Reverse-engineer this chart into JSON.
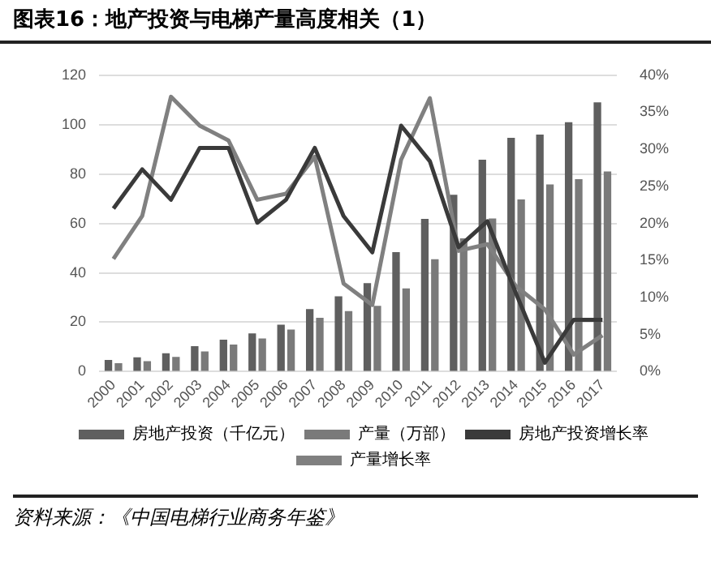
{
  "chart_data": {
    "type": "bar",
    "title": "图表16：地产投资与电梯产量高度相关（1）",
    "categories": [
      "2000",
      "2001",
      "2002",
      "2003",
      "2004",
      "2005",
      "2006",
      "2007",
      "2008",
      "2009",
      "2010",
      "2011",
      "2012",
      "2013",
      "2014",
      "2015",
      "2016",
      "2017"
    ],
    "series": [
      {
        "name": "房地产投资（千亿元）",
        "color": "#5f5f5f",
        "values": [
          4.7,
          5.8,
          7.4,
          10.3,
          12.9,
          15.5,
          19,
          25.3,
          30.5,
          35.8,
          48.4,
          61.8,
          71.6,
          85.8,
          94.7,
          96,
          101,
          109
        ]
      },
      {
        "name": "产量（万部）",
        "color": "#7a7a7a",
        "values": [
          3.4,
          4.2,
          6,
          8.2,
          11,
          13.4,
          17,
          21.8,
          24.5,
          26.6,
          33.7,
          45.5,
          54,
          62,
          69.7,
          75.8,
          77.9,
          81
        ]
      },
      {
        "name": "房地产投资增长率",
        "type": "line",
        "axis": "y2",
        "color": "#3a3a3a",
        "values": [
          22,
          27.3,
          23.2,
          30.2,
          30.2,
          20.1,
          23.2,
          30.2,
          21,
          16.1,
          33.2,
          28.4,
          16.8,
          20.3,
          10.5,
          1.2,
          7,
          7
        ]
      },
      {
        "name": "产量增长率",
        "type": "line",
        "axis": "y2",
        "color": "#808080",
        "values": [
          15.2,
          21,
          37.1,
          33.2,
          31.2,
          23.2,
          24,
          29,
          11.9,
          9,
          28.6,
          36.9,
          16.3,
          17.2,
          11.5,
          8.4,
          2.3,
          4.9
        ]
      }
    ],
    "ylim": [
      0,
      120
    ],
    "yticks": [
      0,
      20,
      40,
      60,
      80,
      100,
      120
    ],
    "y2lim": [
      0,
      40
    ],
    "y2ticks": [
      {
        "value": 0,
        "label": "0%"
      },
      {
        "value": 5,
        "label": "5%"
      },
      {
        "value": 10,
        "label": "10%"
      },
      {
        "value": 15,
        "label": "15%"
      },
      {
        "value": 20,
        "label": "20%"
      },
      {
        "value": 25,
        "label": "25%"
      },
      {
        "value": 30,
        "label": "30%"
      },
      {
        "value": 35,
        "label": "35%"
      },
      {
        "value": 40,
        "label": "40%"
      }
    ],
    "grid": "y",
    "legend": "bottom",
    "marker": "none",
    "line_style": "solid",
    "annotations": [
      "资料来源：《中国电梯行业商务年鉴》"
    ]
  }
}
